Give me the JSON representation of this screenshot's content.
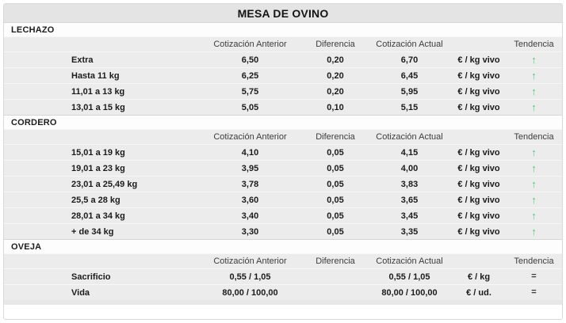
{
  "title": "MESA DE OVINO",
  "chart_data": {
    "type": "table",
    "title": "MESA DE OVINO",
    "columns": {
      "label": "",
      "anterior": "Cotización Anterior",
      "diferencia": "Diferencia",
      "actual": "Cotización Actual",
      "unit": "",
      "tendencia": "Tendencia"
    },
    "trend_glyphs": {
      "up": "↑",
      "equal": "="
    },
    "trend_colors": {
      "up": "#4ec97c",
      "equal": "#3b3b3b"
    },
    "sections": [
      {
        "name": "LECHAZO",
        "rows": [
          {
            "label": "Extra",
            "anterior": "6,50",
            "diferencia": "0,20",
            "actual": "6,70",
            "unit": "€ / kg vivo",
            "trend": "up"
          },
          {
            "label": "Hasta 11 kg",
            "anterior": "6,25",
            "diferencia": "0,20",
            "actual": "6,45",
            "unit": "€ / kg vivo",
            "trend": "up"
          },
          {
            "label": "11,01 a 13 kg",
            "anterior": "5,75",
            "diferencia": "0,20",
            "actual": "5,95",
            "unit": "€ / kg vivo",
            "trend": "up"
          },
          {
            "label": "13,01 a 15 kg",
            "anterior": "5,05",
            "diferencia": "0,10",
            "actual": "5,15",
            "unit": "€ / kg vivo",
            "trend": "up"
          }
        ]
      },
      {
        "name": "CORDERO",
        "rows": [
          {
            "label": "15,01 a 19 kg",
            "anterior": "4,10",
            "diferencia": "0,05",
            "actual": "4,15",
            "unit": "€ / kg vivo",
            "trend": "up"
          },
          {
            "label": "19,01 a 23 kg",
            "anterior": "3,95",
            "diferencia": "0,05",
            "actual": "4,00",
            "unit": "€ / kg vivo",
            "trend": "up"
          },
          {
            "label": "23,01 a 25,49 kg",
            "anterior": "3,78",
            "diferencia": "0,05",
            "actual": "3,83",
            "unit": "€ / kg vivo",
            "trend": "up"
          },
          {
            "label": "25,5 a 28 kg",
            "anterior": "3,60",
            "diferencia": "0,05",
            "actual": "3,65",
            "unit": "€ / kg vivo",
            "trend": "up"
          },
          {
            "label": "28,01 a 34 kg",
            "anterior": "3,40",
            "diferencia": "0,05",
            "actual": "3,45",
            "unit": "€ / kg vivo",
            "trend": "up"
          },
          {
            "label": "+ de 34 kg",
            "anterior": "3,30",
            "diferencia": "0,05",
            "actual": "3,35",
            "unit": "€ / kg vivo",
            "trend": "up"
          }
        ]
      },
      {
        "name": "OVEJA",
        "rows": [
          {
            "label": "Sacrificio",
            "anterior": "0,55 / 1,05",
            "diferencia": "",
            "actual": "0,55 / 1,05",
            "unit": "€ / kg",
            "trend": "equal"
          },
          {
            "label": "Vida",
            "anterior": "80,00 / 100,00",
            "diferencia": "",
            "actual": "80,00 / 100,00",
            "unit": "€ / ud.",
            "trend": "equal"
          }
        ]
      }
    ]
  }
}
